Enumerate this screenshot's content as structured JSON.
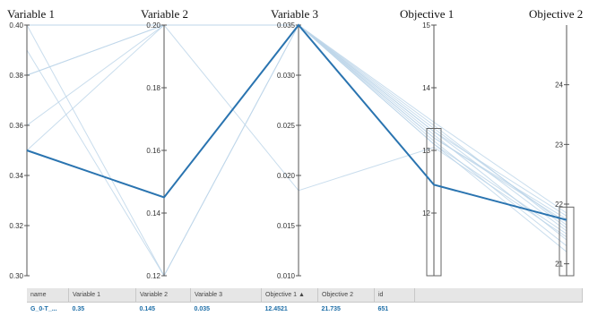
{
  "chart_data": {
    "type": "parallel_coordinates",
    "axes": [
      {
        "name": "Variable 1",
        "range": [
          0.3,
          0.4
        ],
        "ticks": [
          "0.30",
          "0.32",
          "0.34",
          "0.36",
          "0.38",
          "0.40"
        ]
      },
      {
        "name": "Variable 2",
        "range": [
          0.12,
          0.2
        ],
        "ticks": [
          "0.12",
          "0.14",
          "0.16",
          "0.18",
          "0.20"
        ]
      },
      {
        "name": "Variable 3",
        "range": [
          0.01,
          0.035
        ],
        "ticks": [
          "0.010",
          "0.015",
          "0.020",
          "0.025",
          "0.030",
          "0.035"
        ]
      },
      {
        "name": "Objective 1",
        "range": [
          11.0,
          15.0
        ],
        "ticks": [
          "12",
          "13",
          "14",
          "15"
        ]
      },
      {
        "name": "Objective 2",
        "range": [
          20.8,
          25.0
        ],
        "ticks": [
          "21",
          "22",
          "23",
          "24"
        ]
      }
    ],
    "brush": [
      {
        "axis": "Objective 1",
        "range": [
          11.0,
          13.35
        ]
      },
      {
        "axis": "Objective 2",
        "range": [
          20.8,
          21.95
        ]
      }
    ],
    "highlighted": {
      "values": [
        0.35,
        0.145,
        0.035,
        12.4521,
        21.735
      ]
    },
    "background_lines": [
      [
        0.4,
        0.2,
        0.035,
        13.3,
        21.8
      ],
      [
        0.4,
        0.2,
        0.035,
        13.2,
        21.7
      ],
      [
        0.4,
        0.12,
        0.035,
        13.4,
        21.6
      ],
      [
        0.38,
        0.2,
        0.035,
        13.1,
        21.5
      ],
      [
        0.39,
        0.12,
        0.035,
        13.25,
        21.4
      ],
      [
        0.36,
        0.2,
        0.035,
        13.35,
        21.65
      ],
      [
        0.4,
        0.2,
        0.035,
        13.15,
        21.3
      ],
      [
        0.35,
        0.2,
        0.035,
        13.45,
        21.85
      ],
      [
        0.4,
        0.2,
        0.035,
        13.3,
        21.55
      ],
      [
        0.4,
        0.2,
        0.035,
        13.2,
        21.75
      ],
      [
        0.38,
        0.2,
        0.0185,
        13.05,
        21.45
      ],
      [
        0.4,
        0.2,
        0.035,
        13.1,
        21.2
      ]
    ],
    "line_color": "#2a74b0",
    "background_color": "#bcd5e8"
  },
  "table": {
    "columns": [
      "name",
      "Variable 1",
      "Variable 2",
      "Variable 3",
      "Objective 1 ▲",
      "Objective 2",
      "id"
    ],
    "rows": [
      [
        "G_0-T_...",
        "0.35",
        "0.145",
        "0.035",
        "12.4521",
        "21.735",
        "651"
      ]
    ]
  }
}
